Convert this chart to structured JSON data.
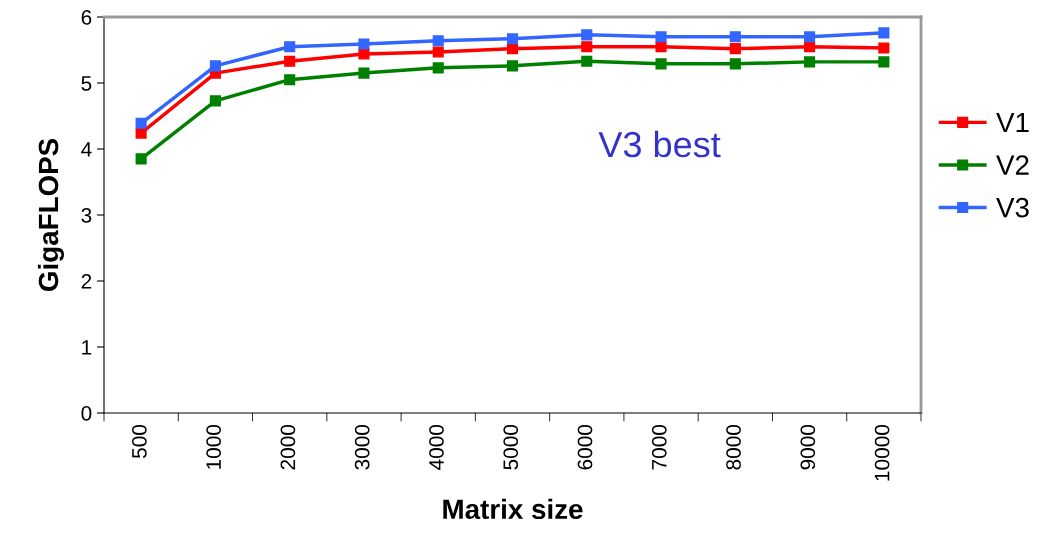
{
  "chart_data": {
    "type": "line",
    "xlabel": "Matrix size",
    "ylabel": "GigaFLOPS",
    "categories": [
      "500",
      "1000",
      "2000",
      "3000",
      "4000",
      "5000",
      "6000",
      "7000",
      "8000",
      "9000",
      "10000"
    ],
    "series": [
      {
        "name": "V1",
        "color": "#ff0000",
        "values": [
          4.24,
          5.15,
          5.33,
          5.44,
          5.47,
          5.52,
          5.55,
          5.55,
          5.52,
          5.55,
          5.53
        ]
      },
      {
        "name": "V2",
        "color": "#008000",
        "values": [
          3.85,
          4.73,
          5.05,
          5.15,
          5.23,
          5.26,
          5.33,
          5.29,
          5.29,
          5.32,
          5.32
        ]
      },
      {
        "name": "V3",
        "color": "#3366ff",
        "values": [
          4.39,
          5.26,
          5.55,
          5.59,
          5.64,
          5.67,
          5.73,
          5.7,
          5.7,
          5.7,
          5.76
        ]
      }
    ],
    "annotations": [
      "V3 best"
    ],
    "ylim": [
      0,
      6
    ],
    "yticks": [
      0,
      1,
      2,
      3,
      4,
      5,
      6
    ],
    "grid": false,
    "legend": "right",
    "marker": "square",
    "line_style": "solid"
  }
}
